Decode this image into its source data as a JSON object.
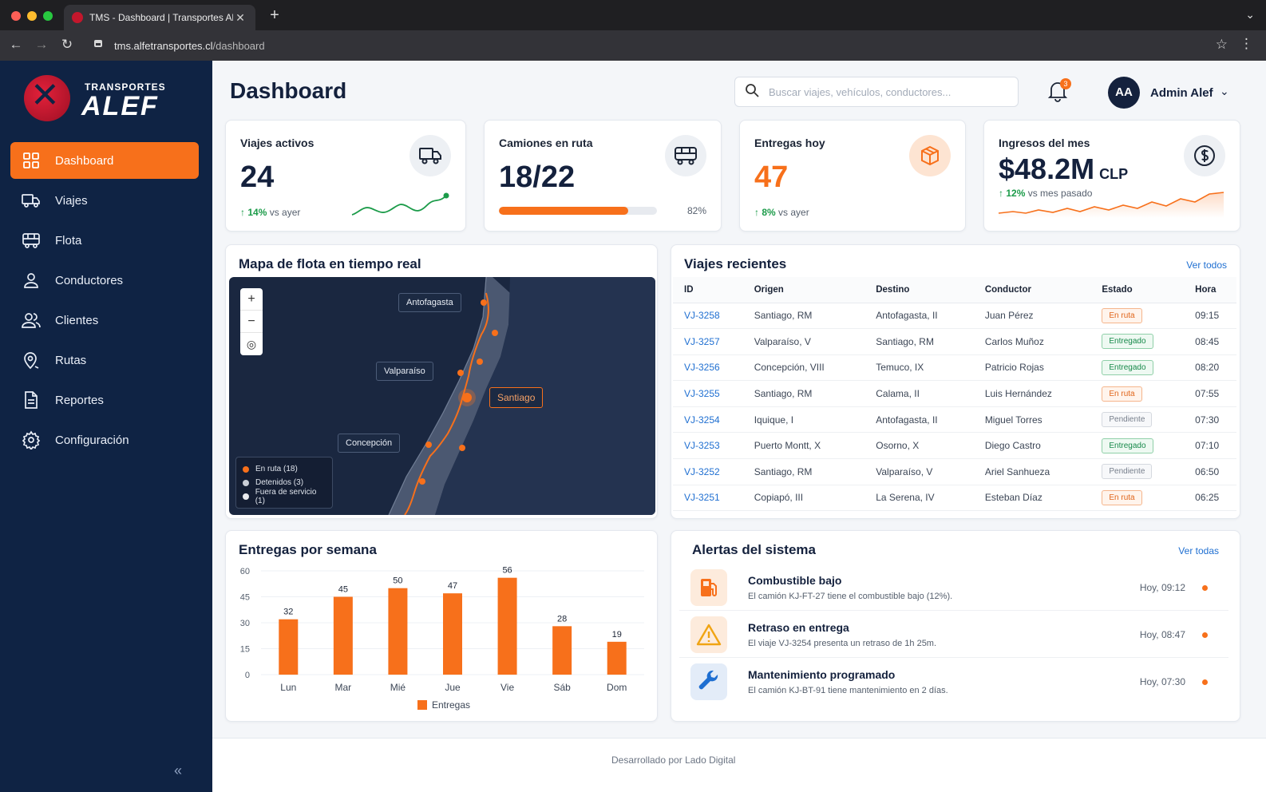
{
  "browser": {
    "tab_title": "TMS - Dashboard | Transportes Alef",
    "url_host": "tms.alfetransportes.cl",
    "url_path": "/dashboard"
  },
  "brand": {
    "top": "TRANSPORTES",
    "name": "ALEF"
  },
  "colors": {
    "accent": "#f7701b",
    "sidebar": "#0f2344",
    "success": "#1b9b49",
    "link": "#1f6fd1"
  },
  "sidebar": {
    "items": [
      {
        "label": "Dashboard",
        "icon": "grid-icon",
        "active": true
      },
      {
        "label": "Viajes",
        "icon": "truck-icon"
      },
      {
        "label": "Flota",
        "icon": "bus-icon"
      },
      {
        "label": "Conductores",
        "icon": "user-icon"
      },
      {
        "label": "Clientes",
        "icon": "users-icon"
      },
      {
        "label": "Rutas",
        "icon": "map-pin-icon"
      },
      {
        "label": "Reportes",
        "icon": "document-icon"
      },
      {
        "label": "Configuración",
        "icon": "gear-icon"
      }
    ],
    "collapse_label": "«"
  },
  "header": {
    "title": "Dashboard",
    "search_placeholder": "Buscar viajes, vehículos, conductores...",
    "notifications_count": "3",
    "avatar_initials": "AA",
    "user_name": "Admin Alef"
  },
  "kpis": {
    "viajes": {
      "label": "Viajes activos",
      "value": "24",
      "trend": "14%",
      "trend_text": "vs ayer"
    },
    "camiones": {
      "label": "Camiones en ruta",
      "value": "18/22",
      "progress": 0.82,
      "progress_text": "82%"
    },
    "entregas": {
      "label": "Entregas hoy",
      "value": "47",
      "trend": "8%",
      "trend_text": "vs ayer"
    },
    "ingresos": {
      "label": "Ingresos del mes",
      "value": "$48.2M",
      "unit": "CLP",
      "trend": "12%",
      "trend_text": "vs mes pasado"
    }
  },
  "map": {
    "title": "Mapa de flota en tiempo real",
    "zoom_in": "+",
    "zoom_out": "−",
    "cities": [
      "Antofagasta",
      "Valparaíso",
      "Santiago",
      "Concepción"
    ],
    "legend": [
      {
        "label": "En ruta (18)",
        "color": "#f7701b"
      },
      {
        "label": "Detenidos (3)",
        "color": "#c9ced6"
      },
      {
        "label": "Fuera de servicio (1)",
        "color": "#e8eaee"
      }
    ]
  },
  "trips": {
    "title": "Viajes recientes",
    "link": "Ver todos",
    "columns": [
      "ID",
      "Origen",
      "Destino",
      "Conductor",
      "Estado",
      "Hora"
    ],
    "rows": [
      [
        "VJ-3258",
        "Santiago, RM",
        "Antofagasta, II",
        "Juan Pérez",
        "En ruta",
        "09:15"
      ],
      [
        "VJ-3257",
        "Valparaíso, V",
        "Santiago, RM",
        "Carlos Muñoz",
        "Entregado",
        "08:45"
      ],
      [
        "VJ-3256",
        "Concepción, VIII",
        "Temuco, IX",
        "Patricio Rojas",
        "Entregado",
        "08:20"
      ],
      [
        "VJ-3255",
        "Santiago, RM",
        "Calama, II",
        "Luis Hernández",
        "En ruta",
        "07:55"
      ],
      [
        "VJ-3254",
        "Iquique, I",
        "Antofagasta, II",
        "Miguel Torres",
        "Pendiente",
        "07:30"
      ],
      [
        "VJ-3253",
        "Puerto Montt, X",
        "Osorno, X",
        "Diego Castro",
        "Entregado",
        "07:10"
      ],
      [
        "VJ-3252",
        "Santiago, RM",
        "Valparaíso, V",
        "Ariel Sanhueza",
        "Pendiente",
        "06:50"
      ],
      [
        "VJ-3251",
        "Copiapó, III",
        "La Serena, IV",
        "Esteban Díaz",
        "En ruta",
        "06:25"
      ]
    ]
  },
  "chart_data": {
    "type": "bar",
    "title": "Entregas por semana",
    "categories": [
      "Lun",
      "Mar",
      "Mié",
      "Jue",
      "Vie",
      "Sáb",
      "Dom"
    ],
    "series": [
      {
        "name": "Entregas",
        "values": [
          32,
          45,
          50,
          47,
          56,
          28,
          19
        ],
        "color": "#f7701b"
      }
    ],
    "yticks": [
      0,
      15,
      30,
      45,
      60
    ],
    "ylim": [
      0,
      60
    ],
    "grid": true,
    "legend_position": "bottom"
  },
  "alerts": {
    "title": "Alertas del sistema",
    "link": "Ver todas",
    "items": [
      {
        "title": "Combustible bajo",
        "desc": "El camión KJ-FT-27 tiene el combustible bajo (12%).",
        "time": "Hoy, 09:12",
        "icon": "fuel-icon"
      },
      {
        "title": "Retraso en entrega",
        "desc": "El viaje VJ-3254 presenta un retraso de 1h 25m.",
        "time": "Hoy, 08:47",
        "icon": "warning-icon"
      },
      {
        "title": "Mantenimiento programado",
        "desc": "El camión KJ-BT-91 tiene mantenimiento en 2 días.",
        "time": "Hoy, 07:30",
        "icon": "wrench-icon"
      }
    ]
  },
  "footer": {
    "prefix": "Desarrollado por",
    "company": "Lado Digital"
  }
}
